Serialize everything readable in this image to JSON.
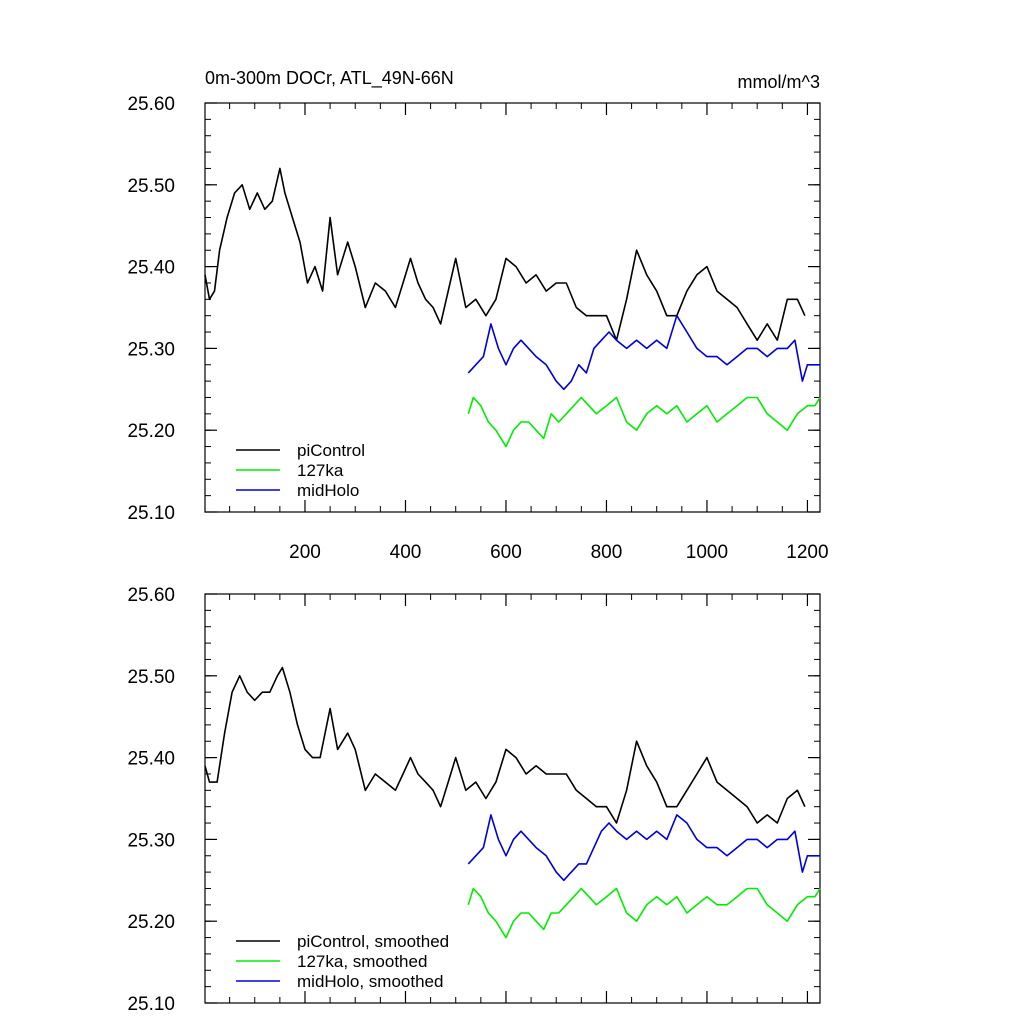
{
  "header": {
    "title": "0m-300m DOCr, ATL_49N-66N",
    "units": "mmol/m^3"
  },
  "colors": {
    "piControl": "#000000",
    "127ka": "#00ee00",
    "midHolo": "#0000dd"
  },
  "chart_data": [
    {
      "type": "line",
      "title": "0m-300m DOCr, ATL_49N-66N",
      "units": "mmol/m^3",
      "xlim": [
        1,
        1225
      ],
      "ylim": [
        25.1,
        25.6
      ],
      "xticks": [
        200,
        400,
        600,
        800,
        1000,
        1200
      ],
      "xtick_labels": [
        "200",
        "400",
        "600",
        "800",
        "1000",
        "1200"
      ],
      "yticks": [
        25.1,
        25.2,
        25.3,
        25.4,
        25.5,
        25.6
      ],
      "ytick_labels": [
        "25.10",
        "25.20",
        "25.30",
        "25.40",
        "25.50",
        "25.60"
      ],
      "legend_position": "bottom-left",
      "series": [
        {
          "name": "piControl",
          "color": "#000000",
          "x": [
            1,
            10,
            20,
            30,
            45,
            60,
            75,
            90,
            105,
            120,
            135,
            150,
            160,
            175,
            190,
            205,
            220,
            235,
            250,
            265,
            285,
            300,
            320,
            340,
            360,
            380,
            395,
            410,
            425,
            440,
            455,
            470,
            485,
            500,
            520,
            540,
            560,
            580,
            600,
            620,
            640,
            660,
            680,
            700,
            720,
            740,
            760,
            780,
            800,
            820,
            840,
            860,
            880,
            900,
            920,
            940,
            960,
            980,
            1000,
            1020,
            1040,
            1060,
            1080,
            1100,
            1120,
            1140,
            1160,
            1180,
            1195
          ],
          "y": [
            25.39,
            25.36,
            25.37,
            25.42,
            25.46,
            25.49,
            25.5,
            25.47,
            25.49,
            25.47,
            25.48,
            25.52,
            25.49,
            25.46,
            25.43,
            25.38,
            25.4,
            25.37,
            25.46,
            25.39,
            25.43,
            25.4,
            25.35,
            25.38,
            25.37,
            25.35,
            25.38,
            25.41,
            25.38,
            25.36,
            25.35,
            25.33,
            25.37,
            25.41,
            25.35,
            25.36,
            25.34,
            25.36,
            25.41,
            25.4,
            25.38,
            25.39,
            25.37,
            25.38,
            25.38,
            25.35,
            25.34,
            25.34,
            25.34,
            25.31,
            25.36,
            25.42,
            25.39,
            25.37,
            25.34,
            25.34,
            25.37,
            25.39,
            25.4,
            25.37,
            25.36,
            25.35,
            25.33,
            25.31,
            25.33,
            25.31,
            25.36,
            25.36,
            25.34
          ]
        },
        {
          "name": "127ka",
          "color": "#00ee00",
          "x": [
            525,
            535,
            550,
            565,
            580,
            600,
            615,
            630,
            645,
            660,
            675,
            690,
            705,
            720,
            735,
            750,
            765,
            780,
            800,
            820,
            840,
            860,
            880,
            900,
            920,
            940,
            960,
            980,
            1000,
            1020,
            1040,
            1060,
            1080,
            1100,
            1120,
            1140,
            1160,
            1180,
            1200,
            1215,
            1225
          ],
          "y": [
            25.22,
            25.24,
            25.23,
            25.21,
            25.2,
            25.18,
            25.2,
            25.21,
            25.21,
            25.2,
            25.19,
            25.22,
            25.21,
            25.22,
            25.23,
            25.24,
            25.23,
            25.22,
            25.23,
            25.24,
            25.21,
            25.2,
            25.22,
            25.23,
            25.22,
            25.23,
            25.21,
            25.22,
            25.23,
            25.21,
            25.22,
            25.23,
            25.24,
            25.24,
            25.22,
            25.21,
            25.2,
            25.22,
            25.23,
            25.23,
            25.24
          ]
        },
        {
          "name": "midHolo",
          "color": "#0000dd",
          "x": [
            525,
            540,
            555,
            570,
            585,
            600,
            615,
            630,
            645,
            660,
            680,
            700,
            715,
            730,
            745,
            760,
            775,
            790,
            805,
            820,
            840,
            860,
            880,
            900,
            920,
            940,
            960,
            980,
            1000,
            1020,
            1040,
            1060,
            1080,
            1100,
            1120,
            1140,
            1160,
            1175,
            1190,
            1200,
            1210,
            1225
          ],
          "y": [
            25.27,
            25.28,
            25.29,
            25.33,
            25.3,
            25.28,
            25.3,
            25.31,
            25.3,
            25.29,
            25.28,
            25.26,
            25.25,
            25.26,
            25.28,
            25.27,
            25.3,
            25.31,
            25.32,
            25.31,
            25.3,
            25.31,
            25.3,
            25.31,
            25.3,
            25.34,
            25.32,
            25.3,
            25.29,
            25.29,
            25.28,
            25.29,
            25.3,
            25.3,
            25.29,
            25.3,
            25.3,
            25.31,
            25.26,
            25.28,
            25.28,
            25.28
          ]
        }
      ]
    },
    {
      "type": "line",
      "title": "",
      "xlim": [
        1,
        1225
      ],
      "ylim": [
        25.1,
        25.6
      ],
      "xticks": [
        200,
        400,
        600,
        800,
        1000,
        1200
      ],
      "yticks": [
        25.1,
        25.2,
        25.3,
        25.4,
        25.5,
        25.6
      ],
      "ytick_labels": [
        "25.10",
        "25.20",
        "25.30",
        "25.40",
        "25.50",
        "25.60"
      ],
      "legend_position": "bottom-left",
      "series": [
        {
          "name": "piControl, smoothed",
          "color": "#000000",
          "x": [
            1,
            10,
            25,
            40,
            55,
            70,
            85,
            100,
            115,
            130,
            145,
            155,
            170,
            185,
            200,
            215,
            230,
            250,
            265,
            285,
            300,
            320,
            340,
            360,
            380,
            395,
            410,
            425,
            440,
            455,
            470,
            485,
            500,
            520,
            540,
            560,
            580,
            600,
            620,
            640,
            660,
            680,
            700,
            720,
            740,
            760,
            780,
            800,
            820,
            840,
            860,
            880,
            900,
            920,
            940,
            960,
            980,
            1000,
            1020,
            1040,
            1060,
            1080,
            1100,
            1120,
            1140,
            1160,
            1180,
            1195
          ],
          "y": [
            25.39,
            25.37,
            25.37,
            25.43,
            25.48,
            25.5,
            25.48,
            25.47,
            25.48,
            25.48,
            25.5,
            25.51,
            25.48,
            25.44,
            25.41,
            25.4,
            25.4,
            25.46,
            25.41,
            25.43,
            25.41,
            25.36,
            25.38,
            25.37,
            25.36,
            25.38,
            25.4,
            25.38,
            25.37,
            25.36,
            25.34,
            25.37,
            25.4,
            25.36,
            25.37,
            25.35,
            25.37,
            25.41,
            25.4,
            25.38,
            25.39,
            25.38,
            25.38,
            25.38,
            25.36,
            25.35,
            25.34,
            25.34,
            25.32,
            25.36,
            25.42,
            25.39,
            25.37,
            25.34,
            25.34,
            25.36,
            25.38,
            25.4,
            25.37,
            25.36,
            25.35,
            25.34,
            25.32,
            25.33,
            25.32,
            25.35,
            25.36,
            25.34
          ]
        },
        {
          "name": "127ka, smoothed",
          "color": "#00ee00",
          "x": [
            525,
            535,
            550,
            565,
            580,
            600,
            615,
            630,
            645,
            660,
            675,
            690,
            705,
            720,
            735,
            750,
            765,
            780,
            800,
            820,
            840,
            860,
            880,
            900,
            920,
            940,
            960,
            980,
            1000,
            1020,
            1040,
            1060,
            1080,
            1100,
            1120,
            1140,
            1160,
            1180,
            1200,
            1215,
            1225
          ],
          "y": [
            25.22,
            25.24,
            25.23,
            25.21,
            25.2,
            25.18,
            25.2,
            25.21,
            25.21,
            25.2,
            25.19,
            25.21,
            25.21,
            25.22,
            25.23,
            25.24,
            25.23,
            25.22,
            25.23,
            25.24,
            25.21,
            25.2,
            25.22,
            25.23,
            25.22,
            25.23,
            25.21,
            25.22,
            25.23,
            25.22,
            25.22,
            25.23,
            25.24,
            25.24,
            25.22,
            25.21,
            25.2,
            25.22,
            25.23,
            25.23,
            25.24
          ]
        },
        {
          "name": "midHolo, smoothed",
          "color": "#0000dd",
          "x": [
            525,
            540,
            555,
            570,
            585,
            600,
            615,
            630,
            645,
            660,
            680,
            700,
            715,
            730,
            745,
            760,
            775,
            790,
            805,
            820,
            840,
            860,
            880,
            900,
            920,
            940,
            960,
            980,
            1000,
            1020,
            1040,
            1060,
            1080,
            1100,
            1120,
            1140,
            1160,
            1175,
            1190,
            1200,
            1210,
            1225
          ],
          "y": [
            25.27,
            25.28,
            25.29,
            25.33,
            25.3,
            25.28,
            25.3,
            25.31,
            25.3,
            25.29,
            25.28,
            25.26,
            25.25,
            25.26,
            25.27,
            25.27,
            25.29,
            25.31,
            25.32,
            25.31,
            25.3,
            25.31,
            25.3,
            25.31,
            25.3,
            25.33,
            25.32,
            25.3,
            25.29,
            25.29,
            25.28,
            25.29,
            25.3,
            25.3,
            25.29,
            25.3,
            25.3,
            25.31,
            25.26,
            25.28,
            25.28,
            25.28
          ]
        }
      ]
    }
  ]
}
